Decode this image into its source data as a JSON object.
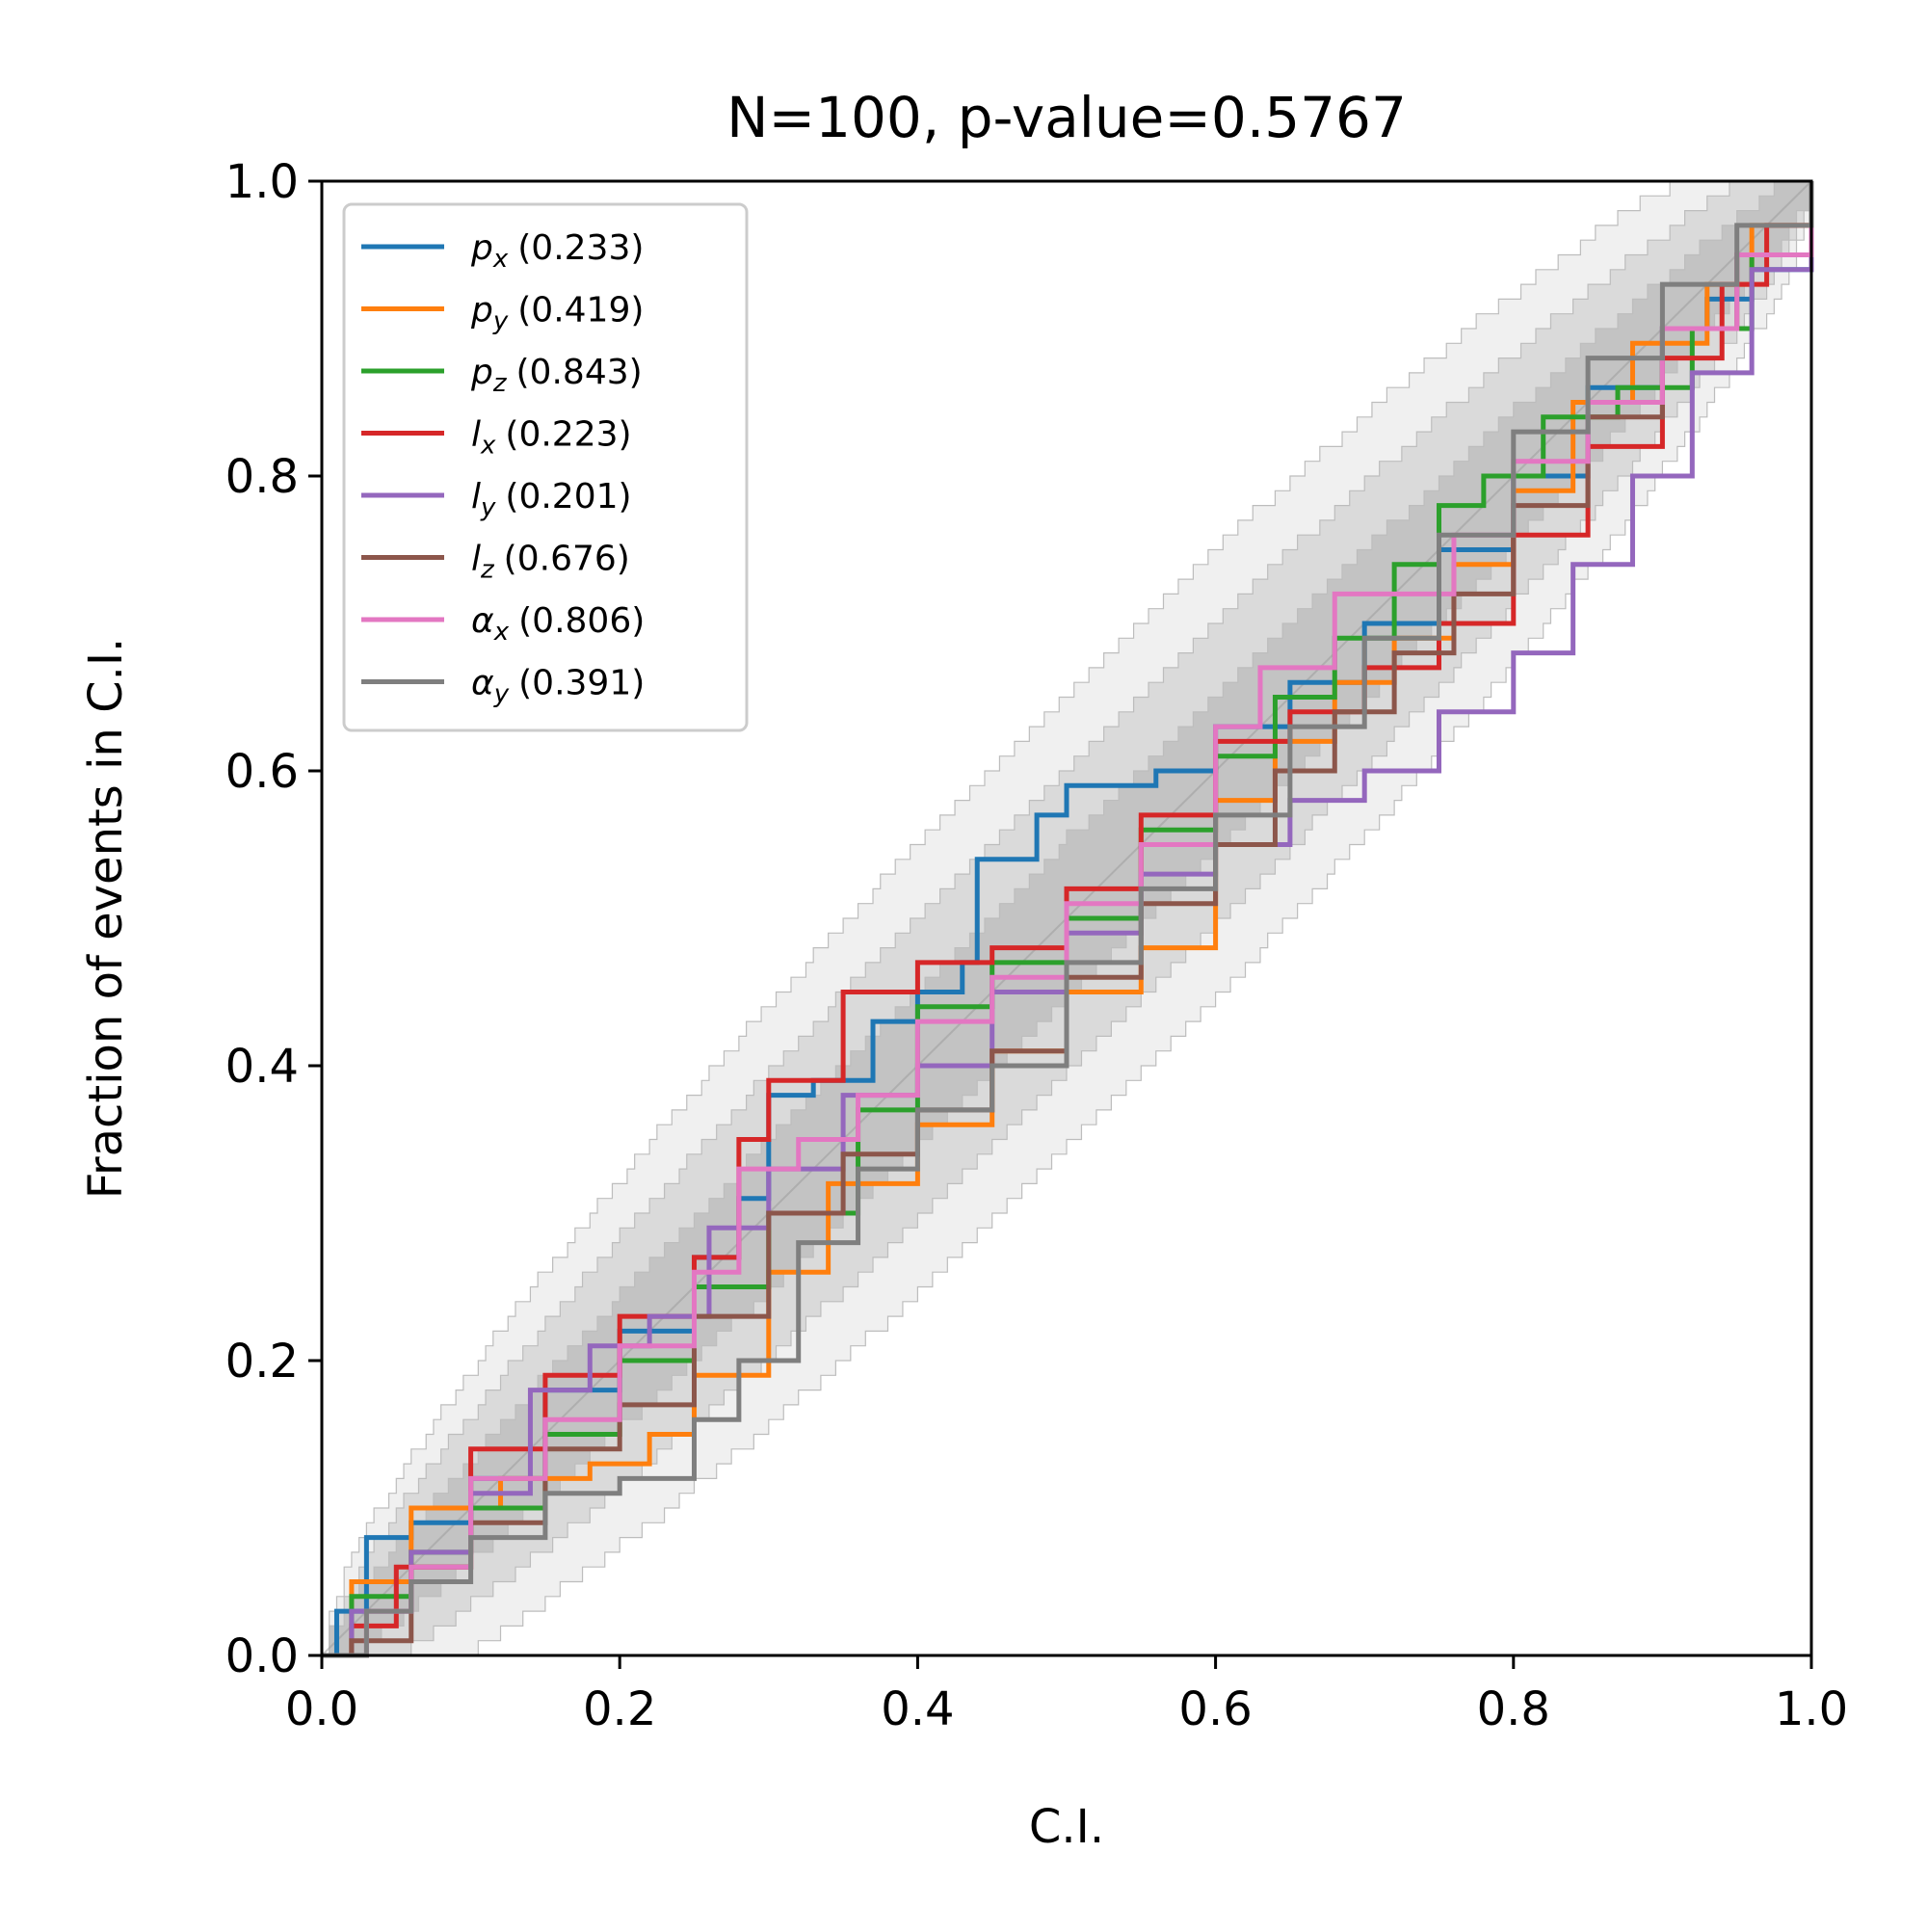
{
  "chart_data": {
    "type": "line",
    "title": "N=100, p-value=0.5767",
    "xlabel": "C.I.",
    "ylabel": "Fraction of events in C.I.",
    "xlim": [
      0,
      1
    ],
    "ylim": [
      0,
      1
    ],
    "xticks": [
      "0.0",
      "0.2",
      "0.4",
      "0.6",
      "0.8",
      "1.0"
    ],
    "yticks": [
      "0.0",
      "0.2",
      "0.4",
      "0.6",
      "0.8",
      "1.0"
    ],
    "grid": false,
    "legend_position": "top-left",
    "confidence_bands": [
      {
        "level": "1-sigma",
        "color": "#b0b0b0"
      },
      {
        "level": "2-sigma",
        "color": "#c8c8c8"
      },
      {
        "level": "3-sigma",
        "color": "#e4e4e4"
      }
    ],
    "series": [
      {
        "name": "p_x",
        "label_base": "p",
        "label_sub": "x",
        "pvalue": "(0.233)",
        "color": "#1f77b4",
        "points": [
          [
            0,
            0
          ],
          [
            0.01,
            0.03
          ],
          [
            0.03,
            0.08
          ],
          [
            0.06,
            0.09
          ],
          [
            0.1,
            0.12
          ],
          [
            0.15,
            0.18
          ],
          [
            0.2,
            0.22
          ],
          [
            0.25,
            0.27
          ],
          [
            0.28,
            0.31
          ],
          [
            0.3,
            0.38
          ],
          [
            0.33,
            0.39
          ],
          [
            0.37,
            0.43
          ],
          [
            0.4,
            0.45
          ],
          [
            0.43,
            0.47
          ],
          [
            0.44,
            0.54
          ],
          [
            0.48,
            0.57
          ],
          [
            0.5,
            0.59
          ],
          [
            0.56,
            0.6
          ],
          [
            0.6,
            0.63
          ],
          [
            0.65,
            0.66
          ],
          [
            0.7,
            0.7
          ],
          [
            0.75,
            0.75
          ],
          [
            0.8,
            0.8
          ],
          [
            0.85,
            0.86
          ],
          [
            0.9,
            0.9
          ],
          [
            0.93,
            0.92
          ],
          [
            0.96,
            0.94
          ],
          [
            1,
            1
          ]
        ]
      },
      {
        "name": "p_y",
        "label_base": "p",
        "label_sub": "y",
        "pvalue": "(0.419)",
        "color": "#ff7f0e",
        "points": [
          [
            0,
            0
          ],
          [
            0.02,
            0.05
          ],
          [
            0.06,
            0.1
          ],
          [
            0.12,
            0.12
          ],
          [
            0.18,
            0.13
          ],
          [
            0.22,
            0.15
          ],
          [
            0.25,
            0.19
          ],
          [
            0.3,
            0.26
          ],
          [
            0.34,
            0.32
          ],
          [
            0.4,
            0.36
          ],
          [
            0.45,
            0.41
          ],
          [
            0.5,
            0.45
          ],
          [
            0.55,
            0.48
          ],
          [
            0.6,
            0.58
          ],
          [
            0.64,
            0.62
          ],
          [
            0.68,
            0.66
          ],
          [
            0.72,
            0.69
          ],
          [
            0.76,
            0.74
          ],
          [
            0.8,
            0.79
          ],
          [
            0.84,
            0.85
          ],
          [
            0.88,
            0.89
          ],
          [
            0.93,
            0.93
          ],
          [
            0.96,
            0.97
          ],
          [
            1,
            1
          ]
        ]
      },
      {
        "name": "p_z",
        "label_base": "p",
        "label_sub": "z",
        "pvalue": "(0.843)",
        "color": "#2ca02c",
        "points": [
          [
            0,
            0
          ],
          [
            0.02,
            0.04
          ],
          [
            0.06,
            0.07
          ],
          [
            0.1,
            0.1
          ],
          [
            0.15,
            0.15
          ],
          [
            0.2,
            0.2
          ],
          [
            0.25,
            0.25
          ],
          [
            0.3,
            0.3
          ],
          [
            0.36,
            0.37
          ],
          [
            0.4,
            0.44
          ],
          [
            0.45,
            0.47
          ],
          [
            0.5,
            0.5
          ],
          [
            0.55,
            0.56
          ],
          [
            0.6,
            0.61
          ],
          [
            0.64,
            0.65
          ],
          [
            0.68,
            0.69
          ],
          [
            0.72,
            0.74
          ],
          [
            0.75,
            0.78
          ],
          [
            0.78,
            0.8
          ],
          [
            0.82,
            0.84
          ],
          [
            0.87,
            0.86
          ],
          [
            0.92,
            0.9
          ],
          [
            0.96,
            0.95
          ],
          [
            1,
            1
          ]
        ]
      },
      {
        "name": "l_x",
        "label_base": "l",
        "label_sub": "x",
        "pvalue": "(0.223)",
        "color": "#d62728",
        "points": [
          [
            0,
            0
          ],
          [
            0.02,
            0.02
          ],
          [
            0.05,
            0.06
          ],
          [
            0.1,
            0.14
          ],
          [
            0.15,
            0.19
          ],
          [
            0.2,
            0.23
          ],
          [
            0.25,
            0.27
          ],
          [
            0.28,
            0.35
          ],
          [
            0.3,
            0.39
          ],
          [
            0.35,
            0.45
          ],
          [
            0.4,
            0.47
          ],
          [
            0.45,
            0.48
          ],
          [
            0.5,
            0.52
          ],
          [
            0.55,
            0.57
          ],
          [
            0.6,
            0.62
          ],
          [
            0.65,
            0.64
          ],
          [
            0.7,
            0.67
          ],
          [
            0.75,
            0.7
          ],
          [
            0.8,
            0.76
          ],
          [
            0.85,
            0.82
          ],
          [
            0.9,
            0.88
          ],
          [
            0.94,
            0.93
          ],
          [
            0.97,
            0.97
          ],
          [
            1,
            1
          ]
        ]
      },
      {
        "name": "l_y",
        "label_base": "l",
        "label_sub": "y",
        "pvalue": "(0.201)",
        "color": "#9467bd",
        "points": [
          [
            0,
            0
          ],
          [
            0.02,
            0.03
          ],
          [
            0.06,
            0.07
          ],
          [
            0.1,
            0.11
          ],
          [
            0.14,
            0.18
          ],
          [
            0.18,
            0.21
          ],
          [
            0.22,
            0.23
          ],
          [
            0.26,
            0.29
          ],
          [
            0.3,
            0.33
          ],
          [
            0.35,
            0.38
          ],
          [
            0.4,
            0.4
          ],
          [
            0.45,
            0.45
          ],
          [
            0.5,
            0.49
          ],
          [
            0.55,
            0.53
          ],
          [
            0.6,
            0.55
          ],
          [
            0.65,
            0.58
          ],
          [
            0.7,
            0.6
          ],
          [
            0.75,
            0.64
          ],
          [
            0.8,
            0.68
          ],
          [
            0.84,
            0.74
          ],
          [
            0.88,
            0.8
          ],
          [
            0.92,
            0.87
          ],
          [
            0.96,
            0.94
          ],
          [
            1,
            1
          ]
        ]
      },
      {
        "name": "l_z",
        "label_base": "l",
        "label_sub": "z",
        "pvalue": "(0.676)",
        "color": "#8c564b",
        "points": [
          [
            0,
            0
          ],
          [
            0.02,
            0.01
          ],
          [
            0.06,
            0.06
          ],
          [
            0.1,
            0.09
          ],
          [
            0.15,
            0.14
          ],
          [
            0.2,
            0.17
          ],
          [
            0.25,
            0.23
          ],
          [
            0.3,
            0.3
          ],
          [
            0.35,
            0.34
          ],
          [
            0.4,
            0.37
          ],
          [
            0.45,
            0.41
          ],
          [
            0.5,
            0.46
          ],
          [
            0.55,
            0.51
          ],
          [
            0.6,
            0.55
          ],
          [
            0.64,
            0.6
          ],
          [
            0.68,
            0.64
          ],
          [
            0.72,
            0.68
          ],
          [
            0.76,
            0.72
          ],
          [
            0.8,
            0.78
          ],
          [
            0.85,
            0.84
          ],
          [
            0.9,
            0.9
          ],
          [
            0.95,
            0.95
          ],
          [
            1,
            1
          ]
        ]
      },
      {
        "name": "alpha_x",
        "label_base": "α",
        "label_sub": "x",
        "pvalue": "(0.806)",
        "color": "#e377c2",
        "points": [
          [
            0,
            0
          ],
          [
            0.03,
            0.03
          ],
          [
            0.06,
            0.06
          ],
          [
            0.1,
            0.12
          ],
          [
            0.15,
            0.16
          ],
          [
            0.2,
            0.21
          ],
          [
            0.25,
            0.26
          ],
          [
            0.28,
            0.33
          ],
          [
            0.32,
            0.35
          ],
          [
            0.36,
            0.38
          ],
          [
            0.4,
            0.43
          ],
          [
            0.45,
            0.46
          ],
          [
            0.5,
            0.51
          ],
          [
            0.55,
            0.55
          ],
          [
            0.6,
            0.63
          ],
          [
            0.63,
            0.67
          ],
          [
            0.68,
            0.72
          ],
          [
            0.72,
            0.72
          ],
          [
            0.76,
            0.76
          ],
          [
            0.8,
            0.81
          ],
          [
            0.85,
            0.85
          ],
          [
            0.9,
            0.9
          ],
          [
            0.95,
            0.95
          ],
          [
            1,
            1
          ]
        ]
      },
      {
        "name": "alpha_y",
        "label_base": "α",
        "label_sub": "y",
        "pvalue": "(0.391)",
        "color": "#7f7f7f",
        "points": [
          [
            0,
            0
          ],
          [
            0.03,
            0.03
          ],
          [
            0.06,
            0.05
          ],
          [
            0.1,
            0.08
          ],
          [
            0.15,
            0.11
          ],
          [
            0.2,
            0.12
          ],
          [
            0.25,
            0.16
          ],
          [
            0.28,
            0.2
          ],
          [
            0.32,
            0.28
          ],
          [
            0.36,
            0.33
          ],
          [
            0.4,
            0.37
          ],
          [
            0.45,
            0.4
          ],
          [
            0.5,
            0.47
          ],
          [
            0.55,
            0.52
          ],
          [
            0.6,
            0.57
          ],
          [
            0.65,
            0.63
          ],
          [
            0.7,
            0.69
          ],
          [
            0.75,
            0.76
          ],
          [
            0.8,
            0.83
          ],
          [
            0.85,
            0.88
          ],
          [
            0.9,
            0.93
          ],
          [
            0.95,
            0.97
          ],
          [
            1,
            1
          ]
        ]
      }
    ]
  }
}
